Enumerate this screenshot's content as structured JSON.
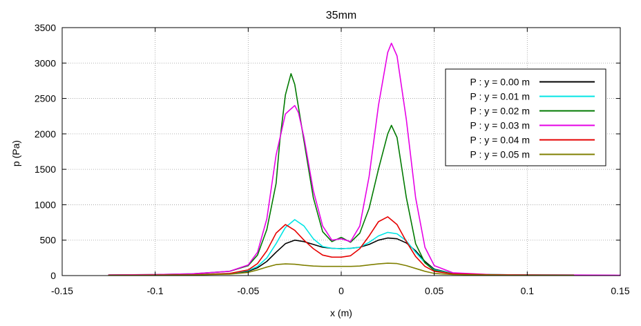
{
  "chart_data": {
    "type": "line",
    "title": "35mm",
    "xlabel": "x (m)",
    "ylabel": "p (Pa)",
    "xlim": [
      -0.15,
      0.15
    ],
    "ylim": [
      0,
      3500
    ],
    "xticks": [
      -0.15,
      -0.1,
      -0.05,
      0,
      0.05,
      0.1,
      0.15
    ],
    "xtick_labels": [
      "-0.15",
      "-0.1",
      "-0.05",
      "0",
      "0.05",
      "0.1",
      "0.15"
    ],
    "yticks": [
      0,
      500,
      1000,
      1500,
      2000,
      2500,
      3000,
      3500
    ],
    "ytick_labels": [
      "0",
      "500",
      "1000",
      "1500",
      "2000",
      "2500",
      "3000",
      "3500"
    ],
    "grid": true,
    "legend_position": "top-right",
    "series": [
      {
        "name": "P : y = 0.00 m",
        "color": "#000000",
        "x": [
          -0.125,
          -0.1,
          -0.08,
          -0.06,
          -0.05,
          -0.045,
          -0.04,
          -0.035,
          -0.03,
          -0.025,
          -0.02,
          -0.015,
          -0.01,
          -0.005,
          0,
          0.005,
          0.01,
          0.015,
          0.02,
          0.025,
          0.03,
          0.035,
          0.04,
          0.045,
          0.05,
          0.06,
          0.08,
          0.1,
          0.125
        ],
        "y": [
          5,
          8,
          12,
          25,
          60,
          110,
          200,
          330,
          450,
          500,
          480,
          440,
          400,
          385,
          380,
          385,
          400,
          440,
          500,
          530,
          520,
          460,
          350,
          200,
          90,
          30,
          12,
          8,
          5
        ]
      },
      {
        "name": "P : y = 0.01 m",
        "color": "#00e5e5",
        "x": [
          -0.125,
          -0.1,
          -0.08,
          -0.06,
          -0.05,
          -0.045,
          -0.04,
          -0.035,
          -0.03,
          -0.025,
          -0.02,
          -0.015,
          -0.01,
          -0.005,
          0,
          0.005,
          0.01,
          0.015,
          0.02,
          0.025,
          0.03,
          0.035,
          0.04,
          0.045,
          0.05,
          0.06,
          0.08,
          0.1,
          0.125
        ],
        "y": [
          8,
          10,
          15,
          30,
          70,
          130,
          250,
          450,
          680,
          790,
          700,
          520,
          410,
          385,
          380,
          385,
          400,
          470,
          560,
          610,
          590,
          490,
          330,
          180,
          80,
          30,
          15,
          10,
          8
        ]
      },
      {
        "name": "P : y = 0.02 m",
        "color": "#007a00",
        "x": [
          -0.125,
          -0.1,
          -0.08,
          -0.06,
          -0.05,
          -0.045,
          -0.04,
          -0.035,
          -0.033,
          -0.03,
          -0.027,
          -0.025,
          -0.02,
          -0.015,
          -0.01,
          -0.005,
          0,
          0.005,
          0.01,
          0.015,
          0.02,
          0.025,
          0.027,
          0.03,
          0.035,
          0.04,
          0.045,
          0.05,
          0.06,
          0.08,
          0.1,
          0.125
        ],
        "y": [
          10,
          15,
          25,
          60,
          140,
          290,
          650,
          1300,
          1900,
          2550,
          2850,
          2700,
          1900,
          1100,
          620,
          480,
          540,
          470,
          600,
          950,
          1500,
          2000,
          2120,
          1950,
          1100,
          450,
          180,
          70,
          25,
          15,
          10,
          8
        ]
      },
      {
        "name": "P : y = 0.03 m",
        "color": "#e600e6",
        "x": [
          -0.125,
          -0.1,
          -0.08,
          -0.06,
          -0.05,
          -0.045,
          -0.04,
          -0.035,
          -0.03,
          -0.028,
          -0.025,
          -0.023,
          -0.02,
          -0.015,
          -0.01,
          -0.005,
          0,
          0.005,
          0.01,
          0.015,
          0.02,
          0.025,
          0.027,
          0.03,
          0.035,
          0.04,
          0.045,
          0.05,
          0.06,
          0.08,
          0.1,
          0.125,
          0.15
        ],
        "y": [
          10,
          15,
          25,
          60,
          150,
          330,
          800,
          1700,
          2280,
          2330,
          2400,
          2300,
          1950,
          1200,
          700,
          500,
          520,
          480,
          700,
          1400,
          2400,
          3150,
          3280,
          3100,
          2200,
          1100,
          400,
          140,
          40,
          15,
          10,
          8,
          5
        ]
      },
      {
        "name": "P : y = 0.04 m",
        "color": "#e60000",
        "x": [
          -0.125,
          -0.1,
          -0.08,
          -0.06,
          -0.05,
          -0.045,
          -0.04,
          -0.035,
          -0.03,
          -0.025,
          -0.02,
          -0.015,
          -0.01,
          -0.005,
          0,
          0.005,
          0.01,
          0.015,
          0.02,
          0.025,
          0.03,
          0.035,
          0.04,
          0.045,
          0.05,
          0.06,
          0.08,
          0.1,
          0.125
        ],
        "y": [
          5,
          8,
          12,
          30,
          80,
          170,
          350,
          600,
          720,
          640,
          500,
          380,
          290,
          260,
          260,
          280,
          380,
          560,
          760,
          830,
          720,
          480,
          270,
          130,
          60,
          25,
          12,
          8,
          5
        ]
      },
      {
        "name": "P : y = 0.05 m",
        "color": "#7f7f00",
        "x": [
          -0.125,
          -0.1,
          -0.08,
          -0.06,
          -0.05,
          -0.045,
          -0.04,
          -0.035,
          -0.03,
          -0.025,
          -0.02,
          -0.015,
          -0.01,
          -0.005,
          0,
          0.005,
          0.01,
          0.015,
          0.02,
          0.025,
          0.03,
          0.035,
          0.04,
          0.045,
          0.05,
          0.06,
          0.08,
          0.1,
          0.125
        ],
        "y": [
          3,
          5,
          10,
          20,
          45,
          80,
          120,
          155,
          165,
          160,
          145,
          135,
          130,
          130,
          130,
          130,
          135,
          150,
          165,
          175,
          170,
          140,
          100,
          60,
          30,
          15,
          8,
          5,
          3
        ]
      }
    ]
  }
}
